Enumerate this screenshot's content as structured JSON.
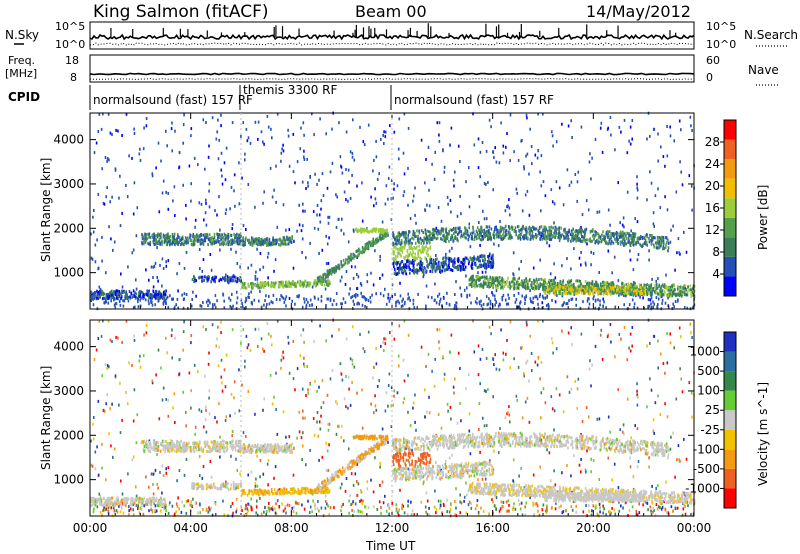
{
  "header": {
    "station": "King Salmon (fitACF)",
    "beam": "Beam 00",
    "date": "14/May/2012"
  },
  "top_panel": {
    "left_label": "N.Sky",
    "right_label": "N.Search",
    "left_ticks": [
      "10^5",
      "10^0"
    ],
    "right_ticks": [
      "10^5",
      "10^0"
    ]
  },
  "freq_panel": {
    "left_label": "Freq.",
    "left_unit": "[MHz]",
    "right_label": "Nave",
    "left_ticks": [
      "18",
      "8"
    ],
    "right_ticks": [
      "60",
      "0"
    ]
  },
  "cpid": {
    "label": "CPID",
    "segments": [
      "normalsound (fast) 157 RF",
      "themis 3300 RF",
      "normalsound (fast) 157 RF"
    ]
  },
  "colors": {
    "power": [
      "#0000ff",
      "#2450b8",
      "#3a7f5a",
      "#55a04a",
      "#9cce3c",
      "#f0c000",
      "#f29a10",
      "#f06020",
      "#ff0000"
    ],
    "velocity": [
      "#2030c0",
      "#2b6fa0",
      "#35884a",
      "#66cc33",
      "#c8c8c8",
      "#f2c200",
      "#f39a10",
      "#f06020",
      "#ff0000"
    ]
  },
  "chart_data": [
    {
      "type": "heatmap",
      "name": "power",
      "ylabel": "Slant Range [km]",
      "xlabel": "",
      "x_ticks": [
        "00:00",
        "04:00",
        "08:00",
        "12:00",
        "16:00",
        "20:00",
        "00:00"
      ],
      "x_range_hours": [
        0,
        24
      ],
      "y_range_km": [
        180,
        4600
      ],
      "y_ticks": [
        1000,
        2000,
        3000,
        4000
      ],
      "colorbar_label": "Power [dB]",
      "colorbar_ticks": [
        "28",
        "24",
        "20",
        "16",
        "12",
        "8",
        "4"
      ],
      "features": [
        {
          "desc": "lower scatter band",
          "start": [
            0,
            500
          ],
          "end": [
            3,
            550
          ]
        },
        {
          "desc": "mid band morning",
          "start": [
            2,
            1750
          ],
          "end": [
            6,
            1700
          ]
        },
        {
          "desc": "echo rising to noon",
          "start": [
            8,
            650
          ],
          "end": [
            11.5,
            1950
          ]
        },
        {
          "desc": "afternoon band",
          "start": [
            12,
            1700
          ],
          "end": [
            22,
            1700
          ]
        },
        {
          "desc": "evening strong echo",
          "start": [
            17,
            750
          ],
          "end": [
            24,
            550
          ]
        }
      ]
    },
    {
      "type": "heatmap",
      "name": "velocity",
      "ylabel": "Slant Range [km]",
      "xlabel": "Time UT",
      "x_ticks": [
        "00:00",
        "04:00",
        "08:00",
        "12:00",
        "16:00",
        "20:00",
        "00:00"
      ],
      "x_range_hours": [
        0,
        24
      ],
      "y_range_km": [
        180,
        4600
      ],
      "y_ticks": [
        1000,
        2000,
        3000,
        4000
      ],
      "colorbar_label": "Velocity [m s^-1]",
      "colorbar_ticks": [
        "1000",
        "500",
        "100",
        "25",
        "-25",
        "-100",
        "-500",
        "-1000"
      ]
    }
  ]
}
